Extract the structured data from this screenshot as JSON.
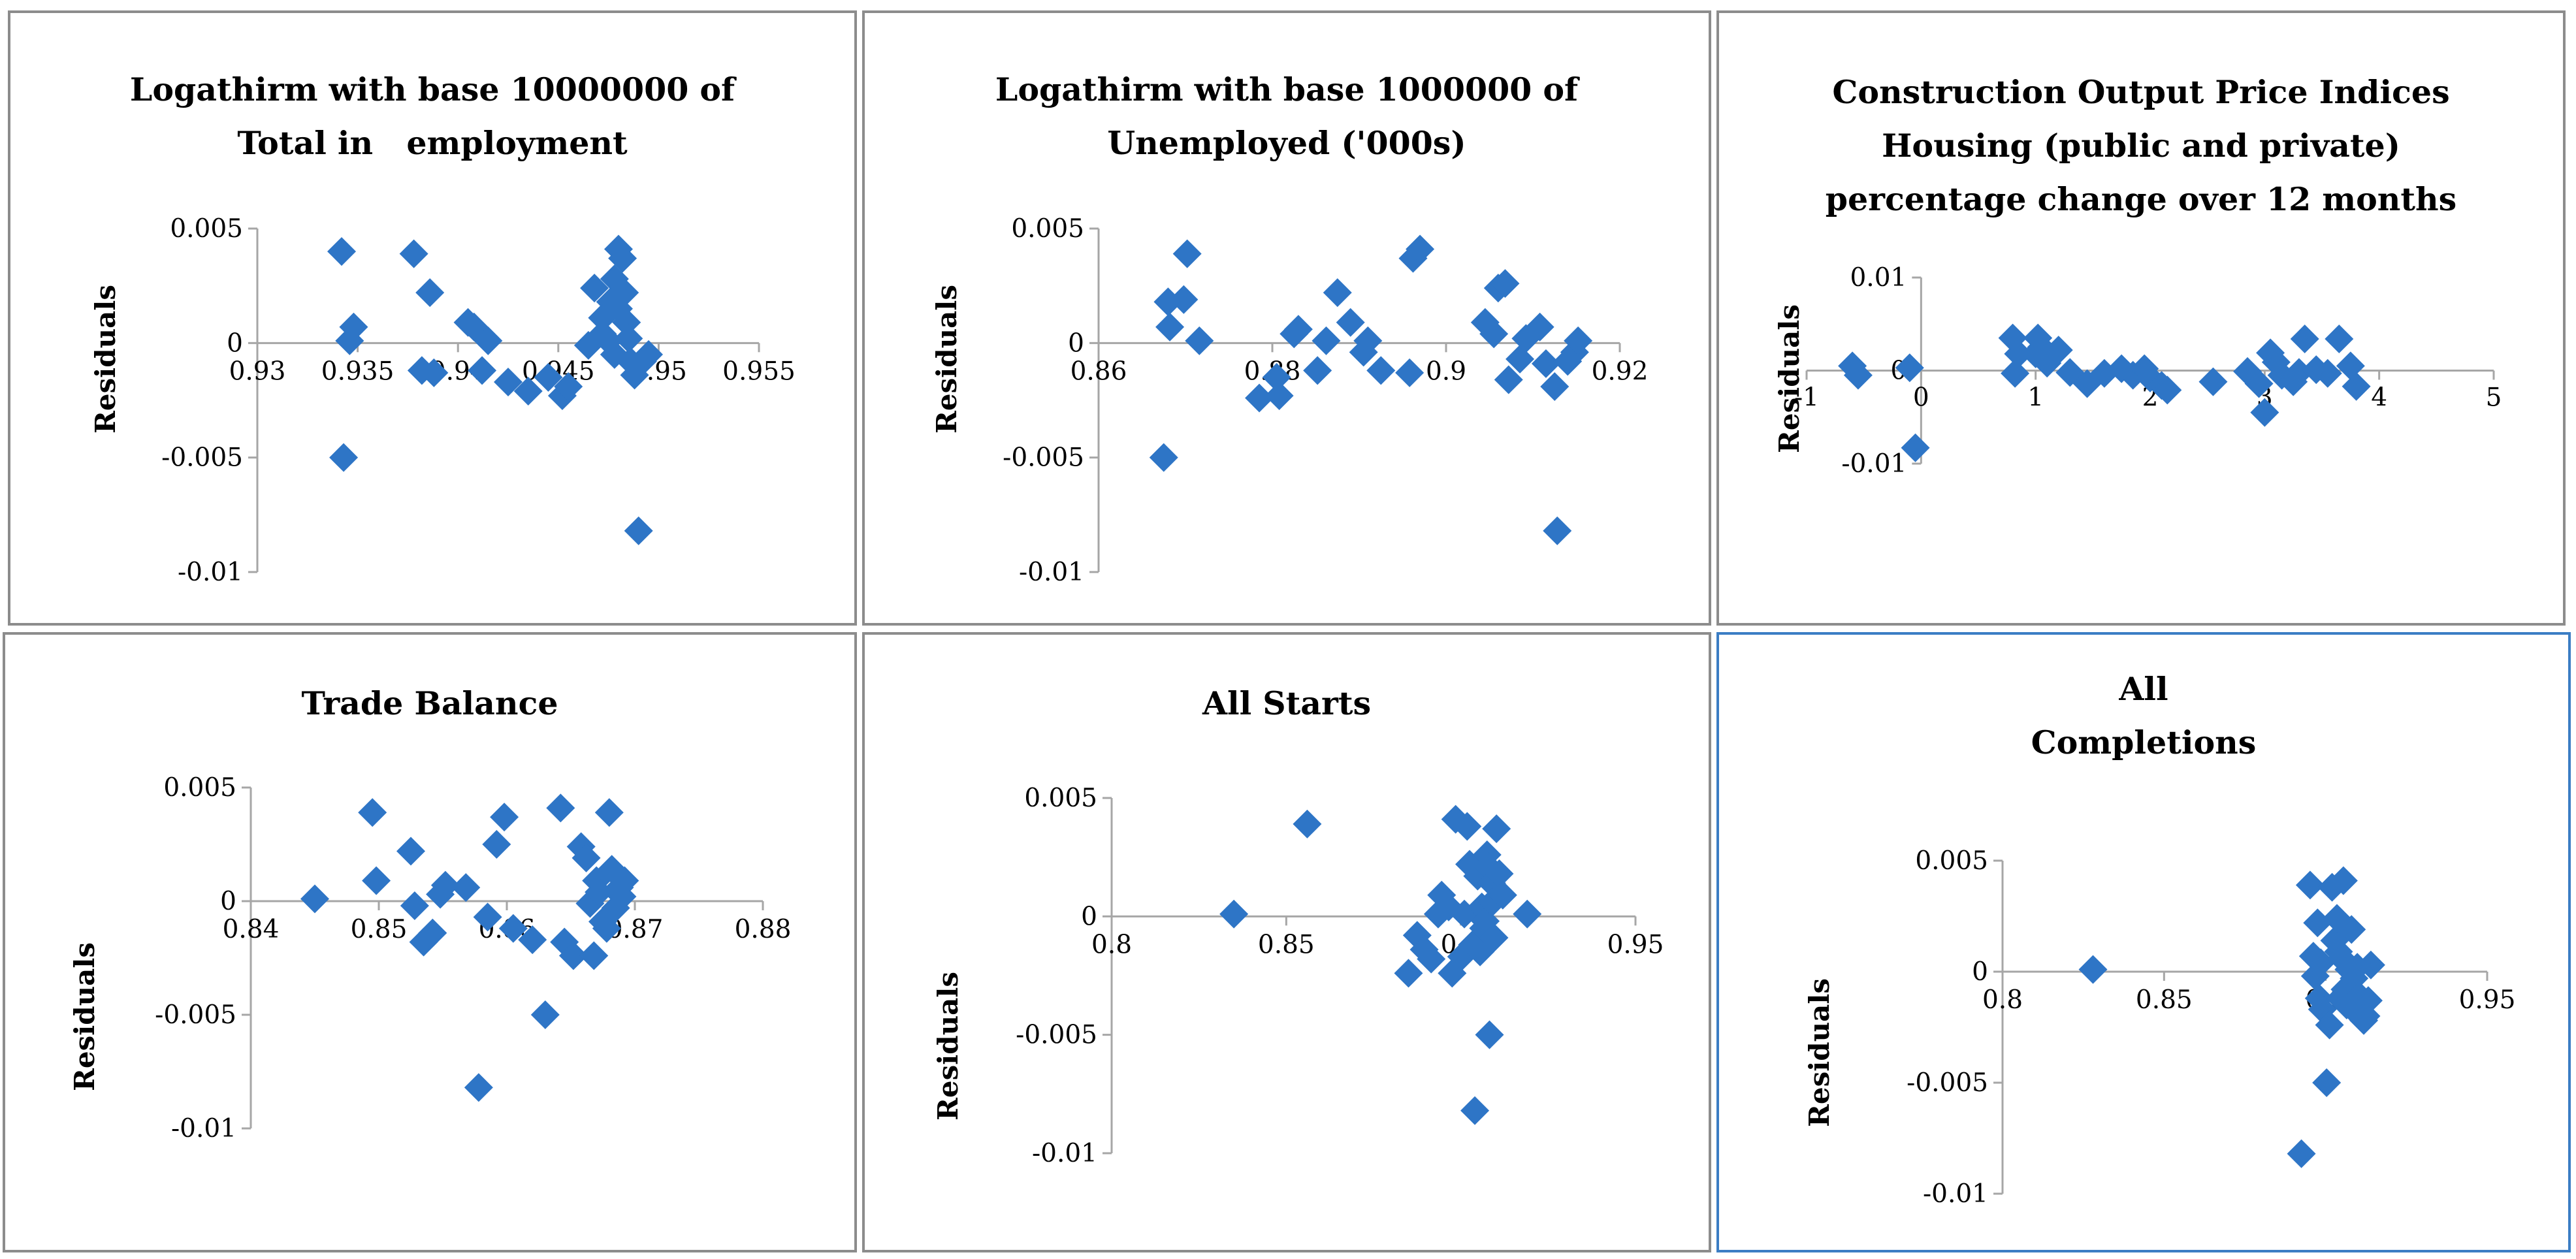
{
  "colors": {
    "marker": "#2e75c6",
    "axis": "#a6a6a6",
    "border": "#8c8c8c",
    "highlight": "#3b7dc4"
  },
  "chart_data": [
    {
      "type": "scatter",
      "title_lines": [
        "Logathirm with base 10000000 of",
        "Total in   employment"
      ],
      "ylabel": "Residuals",
      "xlim": [
        0.93,
        0.955
      ],
      "ylim": [
        -0.01,
        0.005
      ],
      "xticks": [
        "0.93",
        "0.935",
        "0.94",
        "0.945",
        "0.95",
        "0.955"
      ],
      "yticks": [
        "0.005",
        "0",
        "-0.005",
        "-0.01"
      ],
      "x": [
        0.9342,
        0.9343,
        0.9346,
        0.9348,
        0.9378,
        0.9382,
        0.9386,
        0.9388,
        0.9405,
        0.9408,
        0.9412,
        0.9415,
        0.9425,
        0.9435,
        0.9445,
        0.9452,
        0.9455,
        0.9465,
        0.9468,
        0.9472,
        0.9475,
        0.9476,
        0.9478,
        0.9478,
        0.948,
        0.9482,
        0.9483,
        0.9484,
        0.9485,
        0.9486,
        0.9488,
        0.949,
        0.9492,
        0.9495,
        0.9472,
        0.948
      ],
      "y": [
        0.004,
        -0.005,
        0.0001,
        0.0007,
        0.0039,
        -0.0012,
        0.0022,
        -0.0013,
        0.0009,
        0.0007,
        -0.0012,
        0.0001,
        -0.0017,
        -0.0021,
        -0.0015,
        -0.0023,
        -0.0019,
        -0.0001,
        0.0024,
        0.0011,
        0.0001,
        0.0018,
        0.0028,
        -0.0005,
        0.0041,
        0.0037,
        0.0022,
        0.0009,
        0.0002,
        -0.0008,
        -0.0014,
        -0.0082,
        -0.0008,
        -0.0005,
        0.0004,
        0.0015
      ]
    },
    {
      "type": "scatter",
      "title_lines": [
        "Logathirm with base 1000000 of",
        "Unemployed ('000s)"
      ],
      "ylabel": "Residuals",
      "xlim": [
        0.86,
        0.92
      ],
      "ylim": [
        -0.01,
        0.005
      ],
      "xticks": [
        "0.86",
        "0.88",
        "0.9",
        "0.92"
      ],
      "yticks": [
        "0.005",
        "0",
        "-0.005",
        "-0.01"
      ],
      "x": [
        0.8675,
        0.868,
        0.8682,
        0.8698,
        0.8702,
        0.8716,
        0.8785,
        0.8805,
        0.8808,
        0.8825,
        0.883,
        0.8852,
        0.8862,
        0.8875,
        0.889,
        0.8905,
        0.891,
        0.8925,
        0.8958,
        0.8962,
        0.897,
        0.9045,
        0.9055,
        0.906,
        0.9068,
        0.9072,
        0.9085,
        0.9092,
        0.9108,
        0.9115,
        0.9125,
        0.9128,
        0.914,
        0.9148,
        0.9152
      ],
      "y": [
        -0.005,
        0.0018,
        0.0007,
        0.0019,
        0.0039,
        0.0001,
        -0.0024,
        -0.0015,
        -0.0023,
        0.0004,
        0.0006,
        -0.0012,
        0.0001,
        0.0022,
        0.0009,
        -0.0004,
        0.0001,
        -0.0012,
        -0.0013,
        0.0037,
        0.0041,
        0.0009,
        0.0004,
        0.0024,
        0.0026,
        -0.0016,
        -0.0007,
        0.0002,
        0.0007,
        -0.0009,
        -0.0019,
        -0.0082,
        -0.0008,
        -0.0004,
        0.0001
      ]
    },
    {
      "type": "scatter",
      "title_lines": [
        "Construction Output Price Indices",
        "Housing (public and private)",
        "percentage change over 12 months"
      ],
      "ylabel": "Residuals",
      "xlim": [
        -1,
        5
      ],
      "ylim": [
        -0.01,
        0.01
      ],
      "xticks": [
        "-1",
        "0",
        "1",
        "2",
        "3",
        "4",
        "5"
      ],
      "yticks": [
        "0.01",
        "0",
        "-0.01"
      ],
      "x": [
        -0.6,
        -0.55,
        -0.1,
        -0.05,
        0.8,
        0.82,
        0.85,
        1.0,
        1.02,
        1.05,
        1.1,
        1.2,
        1.3,
        1.45,
        1.6,
        1.75,
        1.85,
        1.95,
        2.0,
        2.1,
        2.15,
        2.55,
        2.85,
        2.95,
        3.0,
        3.05,
        3.1,
        3.15,
        3.25,
        3.3,
        3.35,
        3.45,
        3.55,
        3.65,
        3.75,
        3.8
      ],
      "y": [
        0.0005,
        -0.0005,
        0.0003,
        -0.0083,
        0.0035,
        -0.0003,
        0.0018,
        0.0018,
        0.0035,
        0.0025,
        0.0008,
        0.0022,
        -0.0002,
        -0.0014,
        -0.0003,
        0.0002,
        -0.0005,
        0.0002,
        -0.0008,
        -0.0016,
        -0.0021,
        -0.0012,
        -0.0001,
        -0.0014,
        -0.0045,
        0.0019,
        0.0009,
        -0.0005,
        -0.0012,
        -0.0002,
        0.0034,
        0.0001,
        -0.0003,
        0.0034,
        0.0005,
        -0.0017
      ]
    },
    {
      "type": "scatter",
      "title_lines": [
        "Trade Balance"
      ],
      "ylabel": "Residuals",
      "xlim": [
        0.84,
        0.88
      ],
      "ylim": [
        -0.01,
        0.005
      ],
      "xticks": [
        "0.84",
        "0.85",
        "0.86",
        "0.87",
        "0.88"
      ],
      "yticks": [
        "0.005",
        "0",
        "-0.005",
        "-0.01"
      ],
      "x": [
        0.845,
        0.8495,
        0.8498,
        0.8525,
        0.8528,
        0.8535,
        0.8542,
        0.8548,
        0.8552,
        0.8568,
        0.8578,
        0.8585,
        0.8592,
        0.8598,
        0.8605,
        0.862,
        0.863,
        0.8642,
        0.8645,
        0.8652,
        0.8658,
        0.8662,
        0.8665,
        0.8668,
        0.867,
        0.8672,
        0.8675,
        0.8678,
        0.868,
        0.8682,
        0.8685,
        0.8688,
        0.869,
        0.8692
      ],
      "y": [
        0.0001,
        0.0039,
        0.0009,
        0.0022,
        -0.0002,
        -0.0018,
        -0.0014,
        0.0003,
        0.0007,
        0.0006,
        -0.0082,
        -0.0007,
        0.0025,
        0.0037,
        -0.0012,
        -0.0017,
        -0.005,
        0.0041,
        -0.0018,
        -0.0024,
        0.0024,
        0.0019,
        -0.0001,
        -0.0024,
        0.0009,
        0.0004,
        -0.0009,
        -0.0012,
        0.0039,
        0.0014,
        -0.0003,
        0.0006,
        0.0002,
        0.0009
      ]
    },
    {
      "type": "scatter",
      "title_lines": [
        "All Starts"
      ],
      "ylabel": "Residuals",
      "xlim": [
        0.8,
        0.95
      ],
      "ylim": [
        -0.01,
        0.005
      ],
      "xticks": [
        "0.8",
        "0.85",
        "0.9",
        "0.95"
      ],
      "yticks": [
        "0.005",
        "0",
        "-0.005",
        "-0.01"
      ],
      "x": [
        0.835,
        0.856,
        0.885,
        0.8875,
        0.8895,
        0.8915,
        0.8935,
        0.8945,
        0.8965,
        0.8975,
        0.8985,
        0.9002,
        0.901,
        0.9018,
        0.9025,
        0.9033,
        0.904,
        0.9048,
        0.9055,
        0.906,
        0.9065,
        0.907,
        0.9075,
        0.9078,
        0.9082,
        0.9088,
        0.909,
        0.9095,
        0.9102,
        0.911,
        0.912,
        0.919
      ],
      "y": [
        0.0001,
        0.0039,
        -0.0024,
        -0.0008,
        -0.0014,
        -0.0018,
        0.0001,
        0.0009,
        0.0004,
        -0.0024,
        0.0041,
        -0.0017,
        0.0001,
        0.0038,
        0.0022,
        -0.0012,
        -0.0082,
        0.0017,
        -0.0015,
        0.0004,
        -0.0005,
        -0.0002,
        0.0026,
        0.0021,
        -0.005,
        0.0014,
        0.0006,
        -0.0009,
        0.0037,
        0.0018,
        0.0009,
        0.0001
      ]
    },
    {
      "type": "scatter",
      "title_lines": [
        "All",
        "Completions"
      ],
      "ylabel": "Residuals",
      "xlim": [
        0.8,
        0.95
      ],
      "ylim": [
        -0.01,
        0.005
      ],
      "xticks": [
        "0.8",
        "0.85",
        "0.9",
        "0.95"
      ],
      "yticks": [
        "0.005",
        "0",
        "-0.005",
        "-0.01"
      ],
      "x": [
        0.828,
        0.8925,
        0.8952,
        0.8962,
        0.8968,
        0.8975,
        0.898,
        0.8985,
        0.899,
        0.9003,
        0.9012,
        0.902,
        0.9028,
        0.9035,
        0.904,
        0.9045,
        0.905,
        0.9055,
        0.906,
        0.9065,
        0.9072,
        0.908,
        0.9088,
        0.9092,
        0.9098,
        0.9105,
        0.9112,
        0.9118,
        0.9125,
        0.9132,
        0.914
      ],
      "y": [
        0.0001,
        -0.0082,
        0.0039,
        0.0007,
        -0.0002,
        0.0022,
        -0.0012,
        0.0004,
        -0.0017,
        -0.005,
        -0.0024,
        0.0038,
        0.0014,
        0.0024,
        0.0009,
        -0.0012,
        0.0006,
        0.0041,
        -0.0008,
        -0.0015,
        0.0001,
        0.0019,
        -0.0003,
        -0.0018,
        0.0002,
        -0.0011,
        -0.0014,
        -0.0022,
        -0.002,
        -0.0013,
        0.0003
      ]
    }
  ]
}
